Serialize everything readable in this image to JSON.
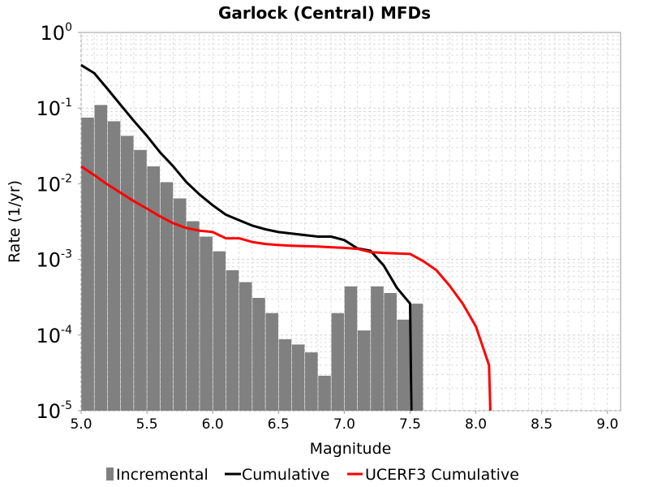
{
  "chart_data": {
    "type": "bar",
    "title": "Garlock (Central) MFDs",
    "xlabel": "Magnitude",
    "ylabel": "Rate (1/yr)",
    "xlim": [
      5.0,
      9.1
    ],
    "ylim": [
      1e-05,
      1
    ],
    "y_scale": "log",
    "grid": true,
    "legend_position": "bottom",
    "x_ticks": [
      "5.0",
      "5.5",
      "6.0",
      "6.5",
      "7.0",
      "7.5",
      "8.0",
      "8.5",
      "9.0"
    ],
    "y_ticks": [
      {
        "base": "10",
        "exp": "0",
        "value": 1
      },
      {
        "base": "10",
        "exp": "-1",
        "value": 0.1
      },
      {
        "base": "10",
        "exp": "-2",
        "value": 0.01
      },
      {
        "base": "10",
        "exp": "-3",
        "value": 0.001
      },
      {
        "base": "10",
        "exp": "-4",
        "value": 0.0001
      },
      {
        "base": "10",
        "exp": "-5",
        "value": 1e-05
      }
    ],
    "series": [
      {
        "name": "Incremental",
        "kind": "bar",
        "color": "#808080",
        "x": [
          5.05,
          5.15,
          5.25,
          5.35,
          5.45,
          5.55,
          5.65,
          5.75,
          5.85,
          5.95,
          6.05,
          6.15,
          6.25,
          6.35,
          6.45,
          6.55,
          6.65,
          6.75,
          6.85,
          6.95,
          7.05,
          7.15,
          7.25,
          7.35,
          7.45,
          7.55
        ],
        "values": [
          0.075,
          0.11,
          0.067,
          0.043,
          0.028,
          0.017,
          0.0105,
          0.0064,
          0.0032,
          0.002,
          0.00128,
          0.00072,
          0.0005,
          0.00031,
          0.000195,
          8.8e-05,
          7.5e-05,
          5.9e-05,
          2.9e-05,
          0.000195,
          0.00044,
          0.000115,
          0.00044,
          0.00036,
          0.00016,
          0.00026
        ]
      },
      {
        "name": "Cumulative",
        "kind": "line",
        "color": "#000000",
        "x": [
          5.0,
          5.1,
          5.2,
          5.3,
          5.4,
          5.5,
          5.6,
          5.7,
          5.8,
          5.9,
          6.0,
          6.1,
          6.2,
          6.3,
          6.4,
          6.5,
          6.6,
          6.7,
          6.8,
          6.9,
          7.0,
          7.1,
          7.2,
          7.3,
          7.4,
          7.5,
          7.51
        ],
        "values": [
          0.37,
          0.29,
          0.18,
          0.11,
          0.068,
          0.043,
          0.026,
          0.017,
          0.0105,
          0.0072,
          0.0052,
          0.0039,
          0.0033,
          0.0028,
          0.0025,
          0.0023,
          0.0022,
          0.0021,
          0.002,
          0.002,
          0.0018,
          0.0014,
          0.0013,
          0.00083,
          0.00042,
          0.00026,
          1e-05
        ]
      },
      {
        "name": "UCERF3 Cumulative",
        "kind": "line",
        "color": "#ff0000",
        "x": [
          5.0,
          5.1,
          5.2,
          5.3,
          5.4,
          5.5,
          5.6,
          5.7,
          5.8,
          5.9,
          6.0,
          6.1,
          6.2,
          6.3,
          6.4,
          6.5,
          6.6,
          6.7,
          6.8,
          6.9,
          7.0,
          7.1,
          7.2,
          7.3,
          7.4,
          7.5,
          7.6,
          7.7,
          7.8,
          7.9,
          8.0,
          8.1,
          8.11
        ],
        "values": [
          0.017,
          0.013,
          0.0098,
          0.0076,
          0.0059,
          0.0047,
          0.0037,
          0.003,
          0.0026,
          0.0024,
          0.0023,
          0.0019,
          0.0019,
          0.0017,
          0.0016,
          0.00155,
          0.00152,
          0.0015,
          0.00148,
          0.00145,
          0.00142,
          0.00138,
          0.00125,
          0.00122,
          0.0012,
          0.00118,
          0.00095,
          0.00072,
          0.00045,
          0.00026,
          0.00013,
          4e-05,
          1e-05
        ]
      }
    ]
  }
}
